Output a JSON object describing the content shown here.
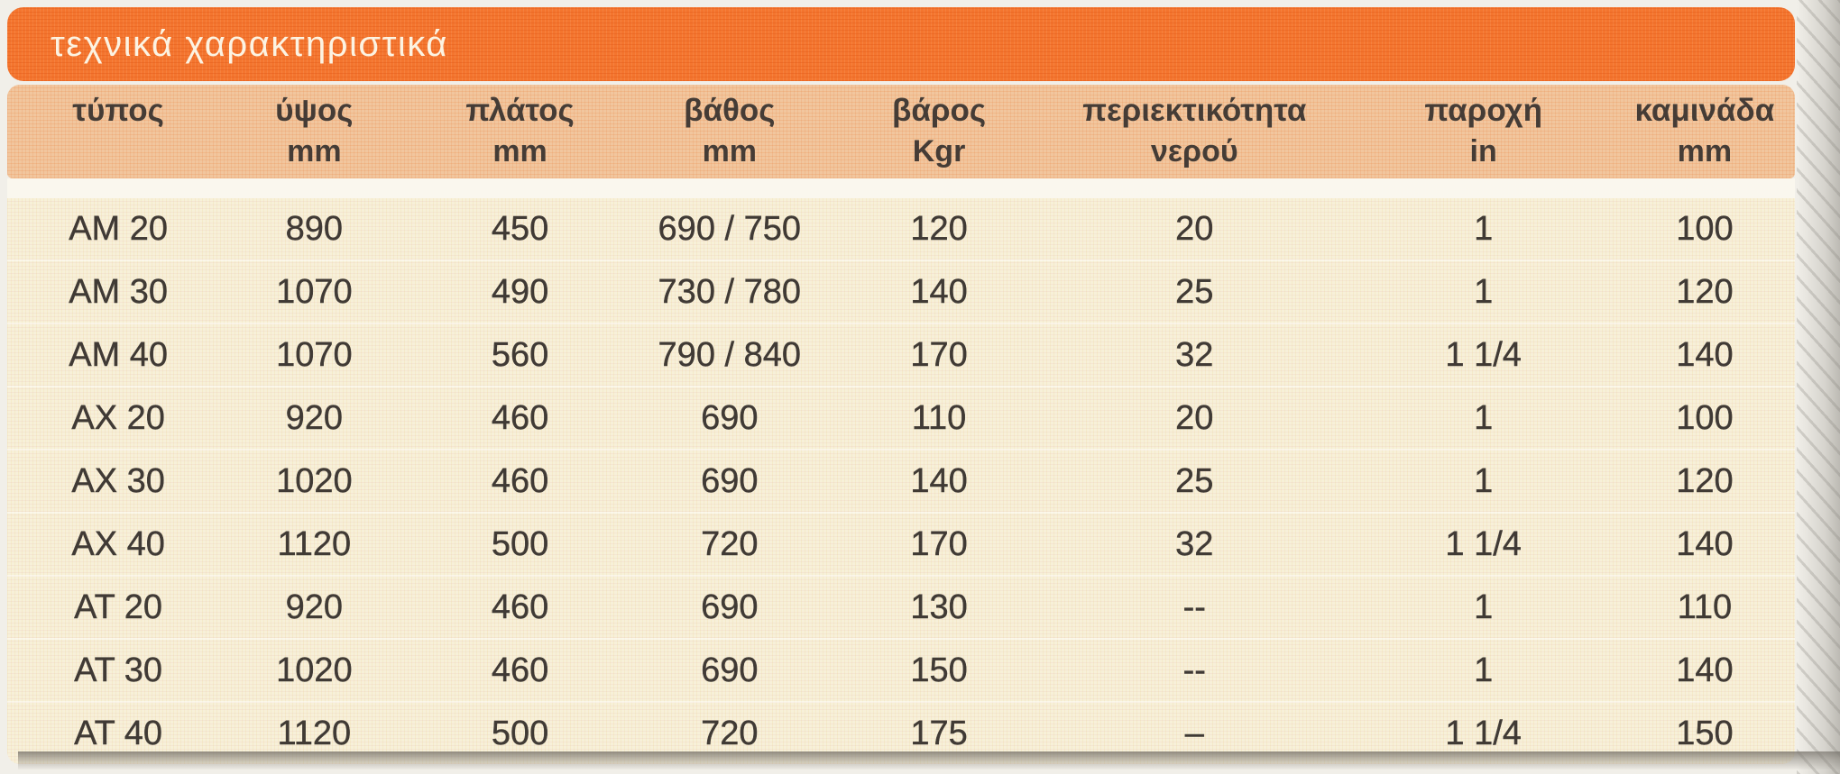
{
  "title": "τεχνικά χαρακτηριστικά",
  "table": {
    "columns": [
      {
        "key": "type",
        "label": "τύπος",
        "unit": ""
      },
      {
        "key": "height",
        "label": "ύψος",
        "unit": "mm"
      },
      {
        "key": "width",
        "label": "πλάτος",
        "unit": "mm"
      },
      {
        "key": "depth",
        "label": "βάθος",
        "unit": "mm"
      },
      {
        "key": "weight",
        "label": "βάρος",
        "unit": "Kgr"
      },
      {
        "key": "water-content",
        "label": "περιεκτικότητα",
        "unit": "νερού"
      },
      {
        "key": "supply",
        "label": "παροχή",
        "unit": "in"
      },
      {
        "key": "chimney",
        "label": "καμινάδα",
        "unit": "mm"
      }
    ],
    "rows": [
      [
        "AM 20",
        "890",
        "450",
        "690 / 750",
        "120",
        "20",
        "1",
        "100"
      ],
      [
        "AM 30",
        "1070",
        "490",
        "730 / 780",
        "140",
        "25",
        "1",
        "120"
      ],
      [
        "AM 40",
        "1070",
        "560",
        "790 / 840",
        "170",
        "32",
        "1 1/4",
        "140"
      ],
      [
        "AX 20",
        "920",
        "460",
        "690",
        "110",
        "20",
        "1",
        "100"
      ],
      [
        "AX 30",
        "1020",
        "460",
        "690",
        "140",
        "25",
        "1",
        "120"
      ],
      [
        "AX 40",
        "1120",
        "500",
        "720",
        "170",
        "32",
        "1 1/4",
        "140"
      ],
      [
        "AT 20",
        "920",
        "460",
        "690",
        "130",
        "--",
        "1",
        "110"
      ],
      [
        "AT 30",
        "1020",
        "460",
        "690",
        "150",
        "--",
        "1",
        "140"
      ],
      [
        "AT 40",
        "1120",
        "500",
        "720",
        "175",
        "–",
        "1 1/4",
        "150"
      ]
    ]
  },
  "colors": {
    "accent": "#f4752e",
    "title_text": "#fcf3e2",
    "header_band": "#f1c69e",
    "header_text": "#453c36",
    "body_bg": "#f7f0d9",
    "body_text": "#403a35",
    "stripe": "#faf7ee",
    "page_bg": "#f1efe9"
  }
}
